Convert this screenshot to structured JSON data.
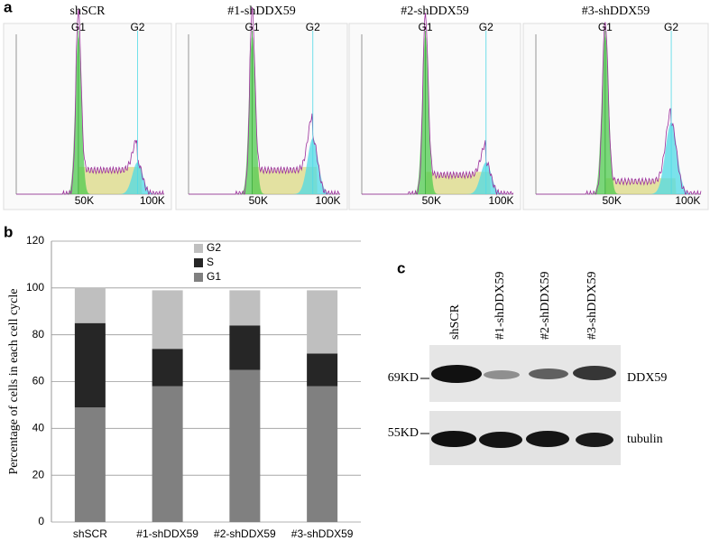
{
  "panel_labels": [
    "a",
    "b",
    "c"
  ],
  "histograms": {
    "titles": [
      "shSCR",
      "#1-shDDX59",
      "#2-shDDX59",
      "#3-shDDX59"
    ],
    "peak_labels": [
      "G1",
      "G2"
    ],
    "x_tick_labels": [
      "50K",
      "100K"
    ]
  },
  "chart_data": {
    "type": "stacked_bar",
    "ylabel": "Percentage of cells in each cell cycle",
    "categories": [
      "shSCR",
      "#1-shDDX59",
      "#2-shDDX59",
      "#3-shDDX59"
    ],
    "series": [
      {
        "name": "G1",
        "color": "#808080",
        "values": [
          49,
          58,
          65,
          58
        ]
      },
      {
        "name": "S",
        "color": "#262626",
        "values": [
          36,
          16,
          19,
          14
        ]
      },
      {
        "name": "G2",
        "color": "#bfbfbf",
        "values": [
          15,
          25,
          15,
          27
        ]
      }
    ],
    "ylim": [
      0,
      120
    ],
    "yticks": [
      0,
      20,
      40,
      60,
      80,
      100,
      120
    ],
    "grid": true
  },
  "blot": {
    "lanes": [
      "shSCR",
      "#1-shDDX59",
      "#2-shDDX59",
      "#3-shDDX59"
    ],
    "markers": [
      "69KD",
      "55KD"
    ],
    "proteins": [
      "DDX59",
      "tubulin"
    ]
  }
}
